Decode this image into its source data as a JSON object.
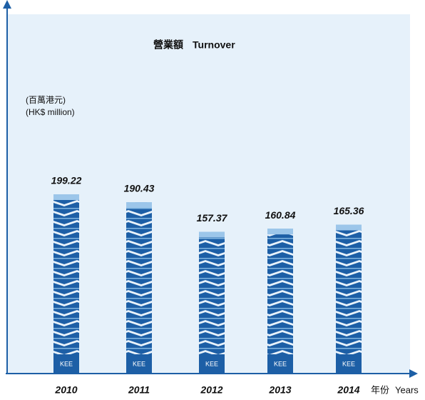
{
  "chart_data": {
    "type": "bar",
    "title": "營業額",
    "subtitle": "Turnover",
    "y_label": "(百萬港元)",
    "y_label_en": "(HK$ million)",
    "x_label": "年份",
    "x_label_en": "Years",
    "badge": "KEE",
    "categories": [
      "2010",
      "2011",
      "2012",
      "2013",
      "2014"
    ],
    "values": [
      199.22,
      190.43,
      157.37,
      160.84,
      165.36
    ],
    "color": "#1d5fa6"
  }
}
